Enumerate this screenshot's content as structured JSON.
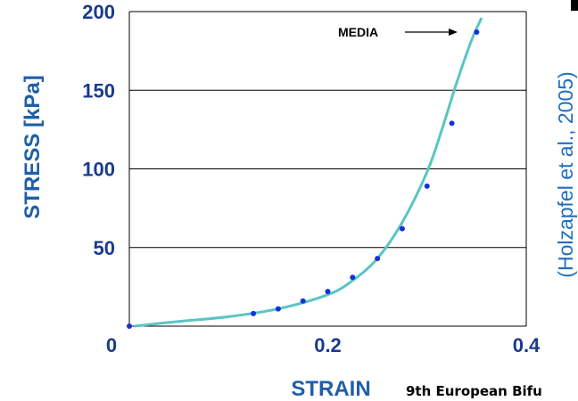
{
  "colors": {
    "tick_text": "#1a3a8c",
    "axis_title": "#1f5fa8",
    "fit_line": "#5bc4c4",
    "points": "#1432d8",
    "grid": "#000000",
    "source_text": "#1f6fbf",
    "footer_text": "#000000"
  },
  "annotations": {
    "media_label": "MEDIA",
    "source": "(Holzapfel et al., 2005)",
    "footer": "9th European Bifu"
  },
  "chart_data": {
    "type": "scatter",
    "xlabel": "STRAIN",
    "ylabel": "STRESS [kPa]",
    "xlim": [
      0,
      0.4
    ],
    "ylim": [
      0,
      200
    ],
    "x_ticks": [
      {
        "value": 0,
        "label": "0"
      },
      {
        "value": 0.2,
        "label": "0.2"
      },
      {
        "value": 0.4,
        "label": "0.4"
      }
    ],
    "y_ticks": [
      {
        "value": 50,
        "label": "50"
      },
      {
        "value": 100,
        "label": "100"
      },
      {
        "value": 150,
        "label": "150"
      },
      {
        "value": 200,
        "label": "200"
      }
    ],
    "grid": {
      "horizontal": [
        50,
        100,
        150,
        200
      ],
      "vertical": false
    },
    "series": [
      {
        "style": "markers",
        "x": [
          0,
          0.125,
          0.15,
          0.175,
          0.2,
          0.225,
          0.25,
          0.275,
          0.3,
          0.325,
          0.35
        ],
        "y": [
          0,
          8,
          11,
          16,
          22,
          31,
          43,
          62,
          89,
          129,
          187
        ]
      },
      {
        "style": "line",
        "x": [
          0.005,
          0.05,
          0.1,
          0.15,
          0.2,
          0.225,
          0.25,
          0.275,
          0.3,
          0.315,
          0.33,
          0.345,
          0.355
        ],
        "y": [
          0,
          3,
          6,
          11,
          20,
          29,
          43,
          66,
          98,
          125,
          155,
          182,
          196
        ]
      }
    ]
  }
}
